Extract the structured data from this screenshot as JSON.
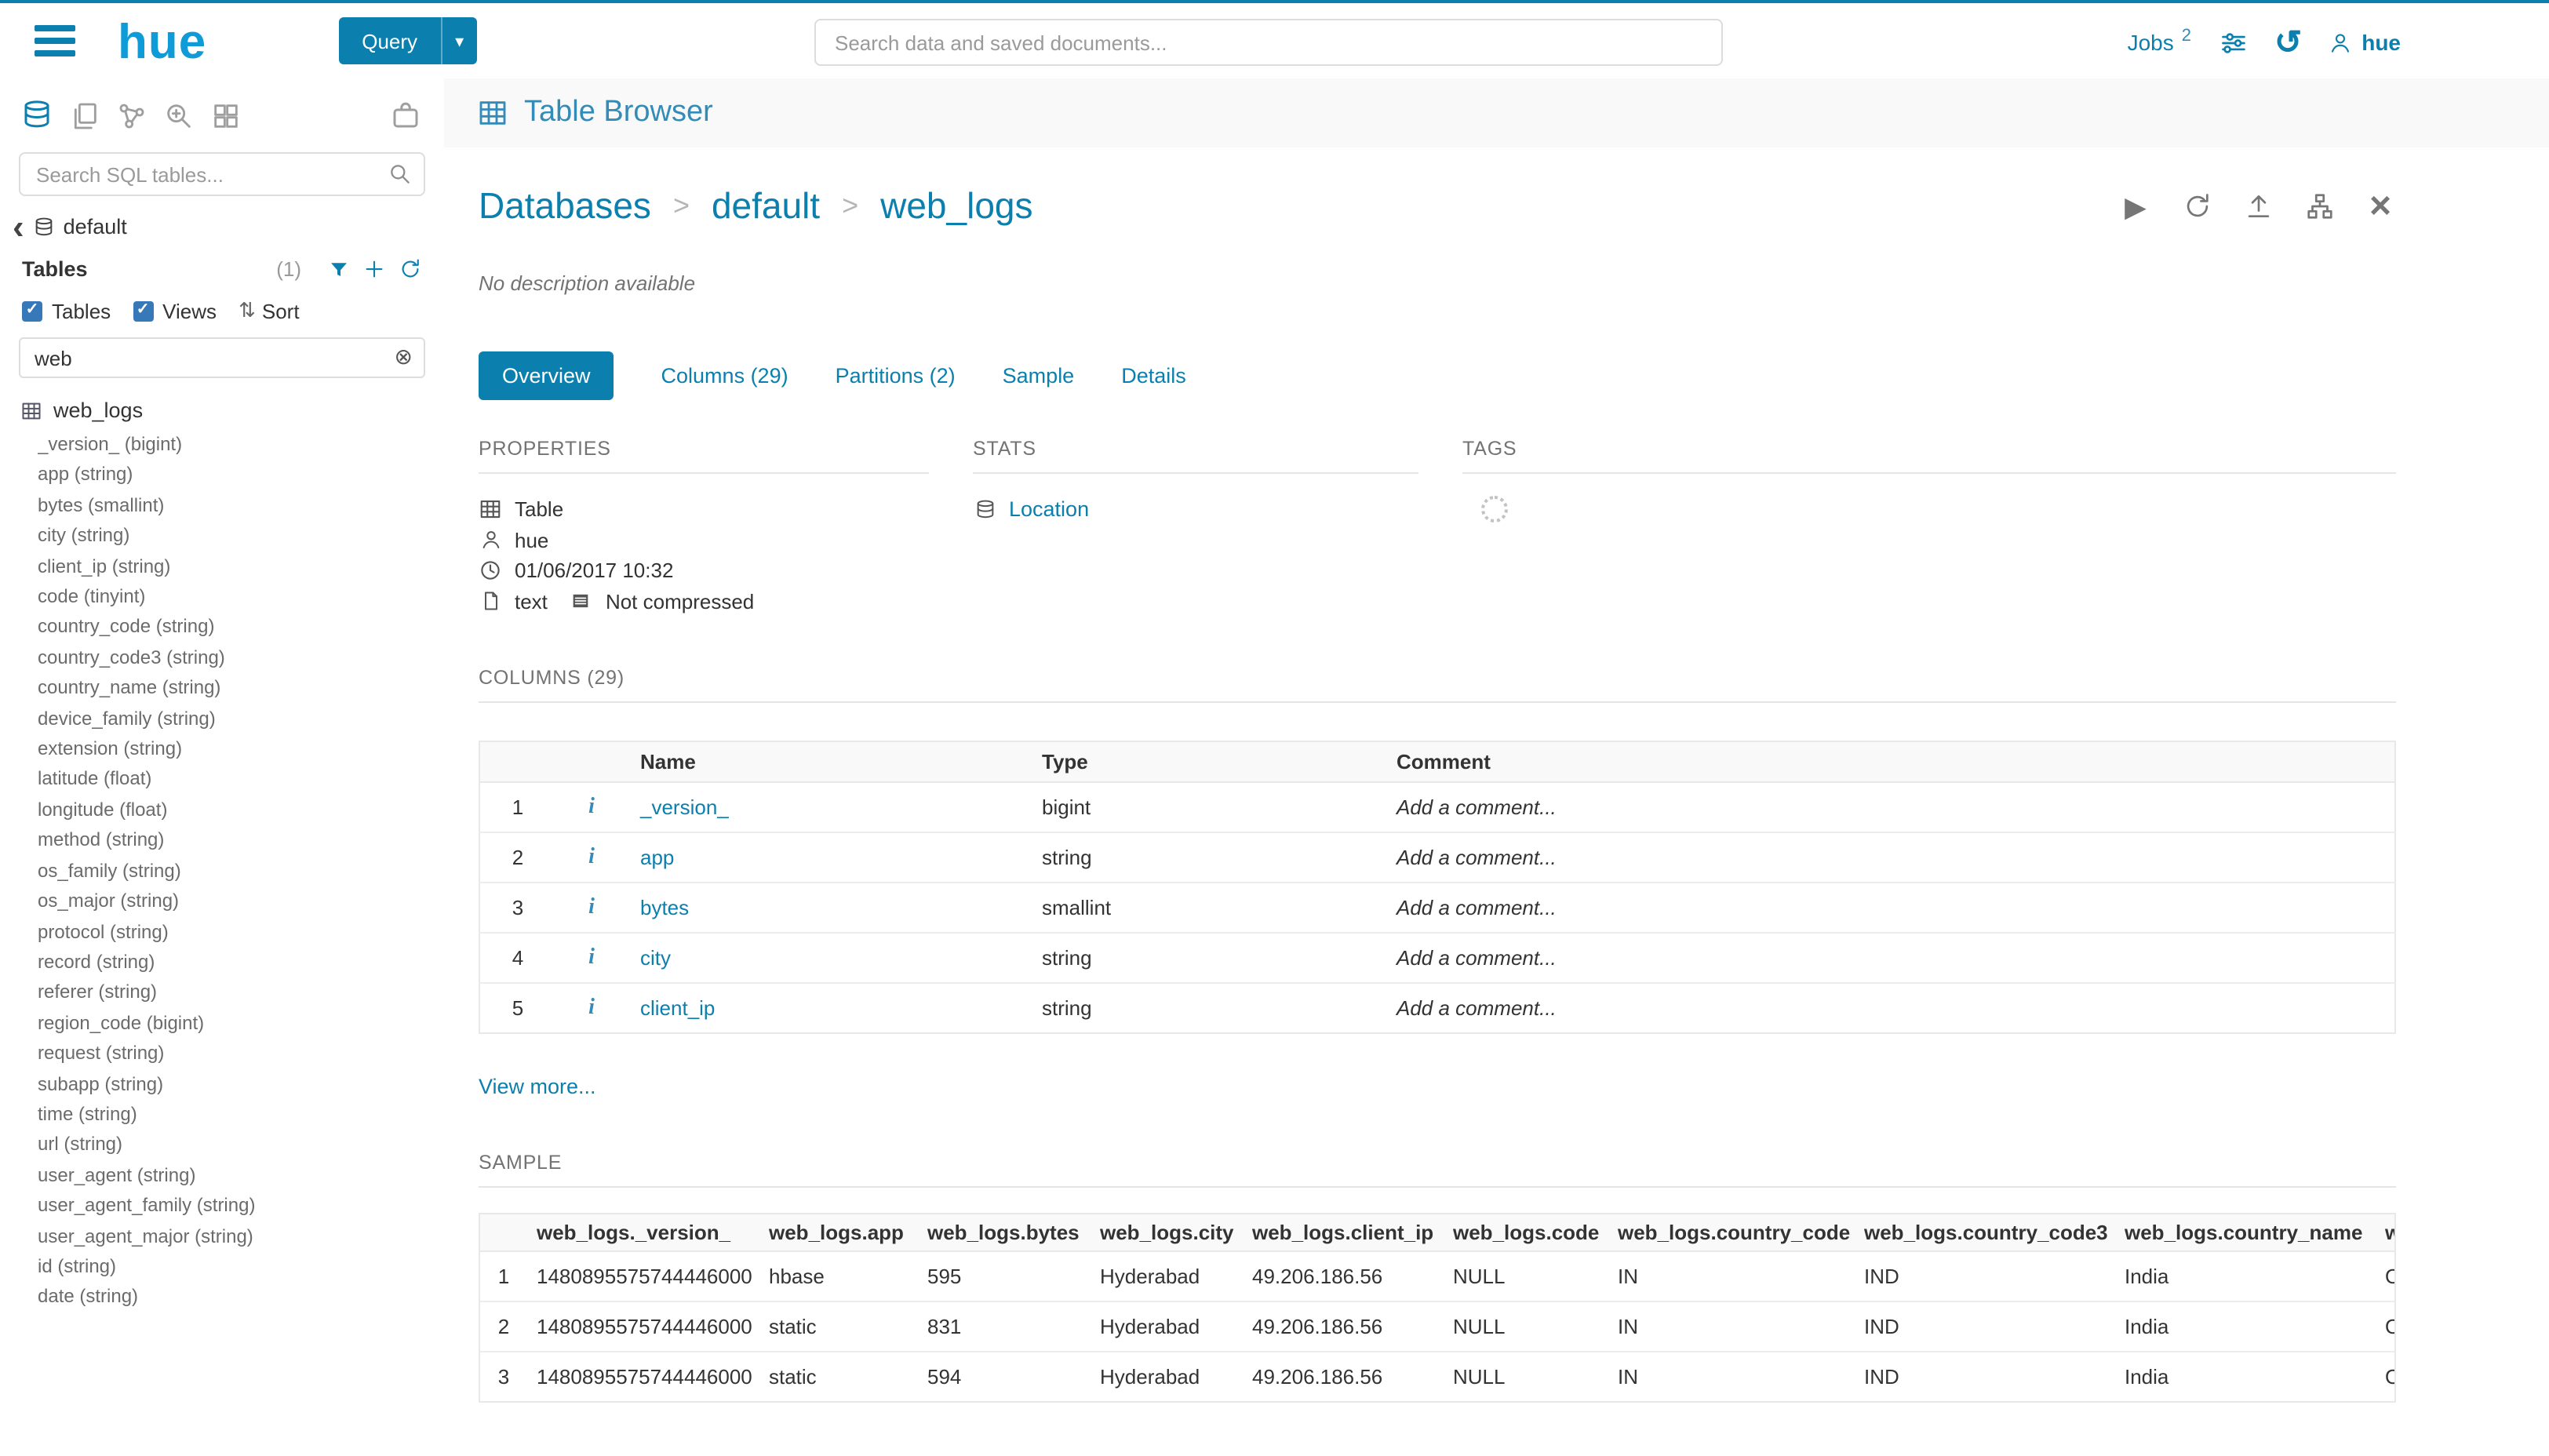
{
  "colors": {
    "accent": "#0b7fad",
    "link": "#338bb8",
    "logo": "#0f9bd7",
    "text": "#333333",
    "muted": "#737373",
    "border": "#e5e5e5"
  },
  "icons": {
    "info": "i",
    "caret_down": "▾",
    "history": "↺",
    "play": "▶",
    "close": "×",
    "chevron_left": "‹",
    "clear": "⊗",
    "sort": "⇅",
    "check": "✓"
  },
  "topbar": {
    "logo": "hue",
    "query_button": "Query",
    "search_placeholder": "Search data and saved documents...",
    "jobs_label": "Jobs",
    "jobs_count": "2",
    "user": "hue"
  },
  "assist": {
    "search_placeholder": "Search SQL tables...",
    "database": "default",
    "tables_label": "Tables",
    "tables_count": "(1)",
    "filter_tables": "Tables",
    "filter_views": "Views",
    "filter_sort": "Sort",
    "filter_value": "web",
    "table_name": "web_logs",
    "columns": [
      "_version_ (bigint)",
      "app (string)",
      "bytes (smallint)",
      "city (string)",
      "client_ip (string)",
      "code (tinyint)",
      "country_code (string)",
      "country_code3 (string)",
      "country_name (string)",
      "device_family (string)",
      "extension (string)",
      "latitude (float)",
      "longitude (float)",
      "method (string)",
      "os_family (string)",
      "os_major (string)",
      "protocol (string)",
      "record (string)",
      "referer (string)",
      "region_code (bigint)",
      "request (string)",
      "subapp (string)",
      "time (string)",
      "url (string)",
      "user_agent (string)",
      "user_agent_family (string)",
      "user_agent_major (string)",
      "id (string)",
      "date (string)"
    ]
  },
  "main": {
    "title": "Table Browser",
    "breadcrumb": {
      "items": [
        "Databases",
        "default",
        "web_logs"
      ],
      "separator": ">"
    },
    "description": "No description available",
    "tabs": [
      {
        "label": "Overview",
        "active": true
      },
      {
        "label": "Columns (29)",
        "active": false
      },
      {
        "label": "Partitions (2)",
        "active": false
      },
      {
        "label": "Sample",
        "active": false
      },
      {
        "label": "Details",
        "active": false
      }
    ],
    "properties": {
      "title": "PROPERTIES",
      "type_label": "Table",
      "owner": "hue",
      "created": "01/06/2017 10:32",
      "format": "text",
      "compression": "Not compressed"
    },
    "stats": {
      "title": "STATS",
      "location_label": "Location"
    },
    "tags": {
      "title": "TAGS"
    },
    "columns_section": {
      "title": "COLUMNS (29)",
      "headers": {
        "name": "Name",
        "type": "Type",
        "comment": "Comment"
      },
      "comment_placeholder": "Add a comment...",
      "rows": [
        {
          "num": "1",
          "name": "_version_",
          "type": "bigint"
        },
        {
          "num": "2",
          "name": "app",
          "type": "string"
        },
        {
          "num": "3",
          "name": "bytes",
          "type": "smallint"
        },
        {
          "num": "4",
          "name": "city",
          "type": "string"
        },
        {
          "num": "5",
          "name": "client_ip",
          "type": "string"
        }
      ],
      "view_more": "View more..."
    },
    "sample_section": {
      "title": "SAMPLE",
      "headers": [
        "web_logs._version_",
        "web_logs.app",
        "web_logs.bytes",
        "web_logs.city",
        "web_logs.client_ip",
        "web_logs.code",
        "web_logs.country_code",
        "web_logs.country_code3",
        "web_logs.country_name",
        "w"
      ],
      "rows": [
        {
          "num": "1",
          "values": [
            "1480895575744446000",
            "hbase",
            "595",
            "Hyderabad",
            "49.206.186.56",
            "NULL",
            "IN",
            "IND",
            "India",
            "O"
          ]
        },
        {
          "num": "2",
          "values": [
            "1480895575744446000",
            "static",
            "831",
            "Hyderabad",
            "49.206.186.56",
            "NULL",
            "IN",
            "IND",
            "India",
            "O"
          ]
        },
        {
          "num": "3",
          "values": [
            "1480895575744446000",
            "static",
            "594",
            "Hyderabad",
            "49.206.186.56",
            "NULL",
            "IN",
            "IND",
            "India",
            "O"
          ]
        }
      ]
    }
  }
}
